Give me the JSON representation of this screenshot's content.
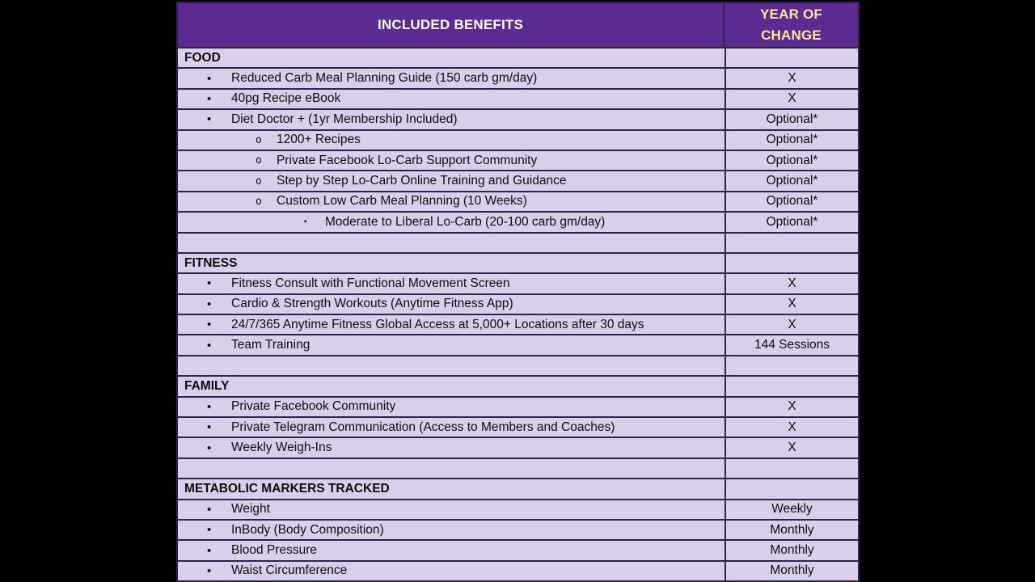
{
  "header": {
    "benefits_label": "INCLUDED BENEFITS",
    "year_label_line1": "YEAR OF",
    "year_label_line2": "CHANGE"
  },
  "colors": {
    "background": "#000000",
    "header_bg": "#5b2b92",
    "row_bg": "#d8d0ea",
    "grid_border": "#33204d",
    "header_text": "#ffffff",
    "year_header_text": "#ffe69c",
    "body_text": "#0d0d0d"
  },
  "bullets": {
    "1": "•",
    "2": "o",
    "3": "▪"
  },
  "rows": [
    {
      "kind": "section",
      "text": "FOOD",
      "value": ""
    },
    {
      "kind": "item",
      "level": 1,
      "text": "Reduced Carb Meal Planning Guide (150 carb gm/day)",
      "value": "X"
    },
    {
      "kind": "item",
      "level": 1,
      "text": "40pg Recipe eBook",
      "value": "X"
    },
    {
      "kind": "item",
      "level": 1,
      "text": "Diet Doctor + (1yr Membership Included)",
      "value": "Optional*"
    },
    {
      "kind": "item",
      "level": 2,
      "text": "1200+ Recipes",
      "value": "Optional*"
    },
    {
      "kind": "item",
      "level": 2,
      "text": "Private Facebook Lo-Carb Support Community",
      "value": "Optional*"
    },
    {
      "kind": "item",
      "level": 2,
      "text": "Step by Step Lo-Carb Online Training and Guidance",
      "value": "Optional*"
    },
    {
      "kind": "item",
      "level": 2,
      "text": "Custom Low Carb Meal Planning (10 Weeks)",
      "value": "Optional*"
    },
    {
      "kind": "item",
      "level": 3,
      "text": "Moderate to Liberal Lo-Carb (20-100 carb gm/day)",
      "value": "Optional*"
    },
    {
      "kind": "spacer",
      "text": "",
      "value": ""
    },
    {
      "kind": "section",
      "text": "FITNESS",
      "value": ""
    },
    {
      "kind": "item",
      "level": 1,
      "text": "Fitness Consult with Functional Movement Screen",
      "value": "X"
    },
    {
      "kind": "item",
      "level": 1,
      "text": "Cardio & Strength Workouts (Anytime Fitness App)",
      "value": "X"
    },
    {
      "kind": "item",
      "level": 1,
      "text": "24/7/365 Anytime Fitness Global Access at 5,000+ Locations after 30 days",
      "value": "X"
    },
    {
      "kind": "item",
      "level": 1,
      "text": "Team Training",
      "value": "144 Sessions"
    },
    {
      "kind": "spacer",
      "text": "",
      "value": ""
    },
    {
      "kind": "section",
      "text": "FAMILY",
      "value": ""
    },
    {
      "kind": "item",
      "level": 1,
      "text": "Private Facebook Community",
      "value": "X"
    },
    {
      "kind": "item",
      "level": 1,
      "text": "Private Telegram Communication (Access to Members and Coaches)",
      "value": "X"
    },
    {
      "kind": "item",
      "level": 1,
      "text": "Weekly Weigh-Ins",
      "value": "X"
    },
    {
      "kind": "spacer",
      "text": "",
      "value": ""
    },
    {
      "kind": "section",
      "text": "METABOLIC MARKERS TRACKED",
      "value": ""
    },
    {
      "kind": "item",
      "level": 1,
      "text": "Weight",
      "value": "Weekly"
    },
    {
      "kind": "item",
      "level": 1,
      "text": "InBody (Body Composition)",
      "value": "Monthly"
    },
    {
      "kind": "item",
      "level": 1,
      "text": "Blood Pressure",
      "value": "Monthly"
    },
    {
      "kind": "item",
      "level": 1,
      "text": "Waist Circumference",
      "value": "Monthly"
    }
  ]
}
